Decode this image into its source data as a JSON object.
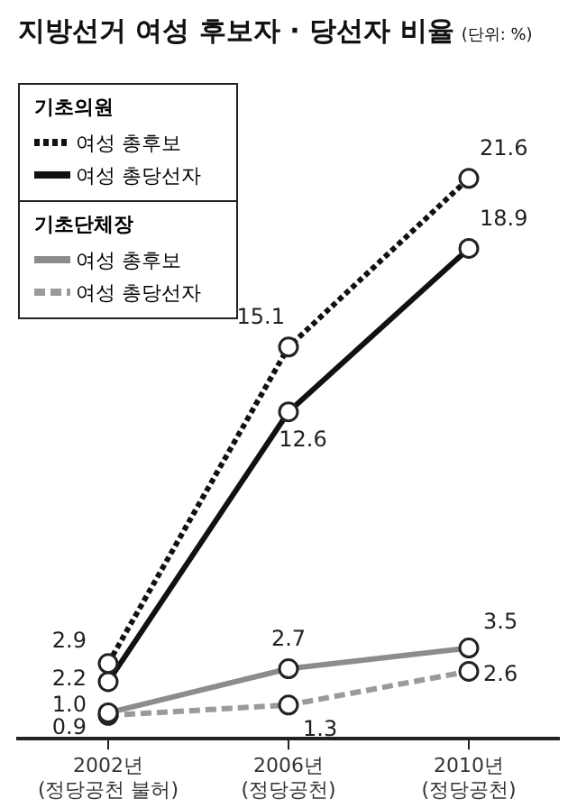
{
  "chart_data": {
    "type": "line",
    "title": "지방선거 여성 후보자 · 당선자 비율",
    "subtitle": "(단위: %)",
    "categories": [
      "2002년\n(정당공천 불허)",
      "2006년\n(정당공천)",
      "2010년\n(정당공천)"
    ],
    "legend_title": [
      "기초의원",
      "기초단체장"
    ],
    "series": [
      {
        "name": "여성 총후보",
        "color": "#111111",
        "values": [
          2.9,
          15.1,
          21.6
        ],
        "value_labels": [
          "2.9",
          "15.1",
          "21.6"
        ],
        "line_style": "dotted"
      },
      {
        "name": "여성 총당선자",
        "color": "#111111",
        "values": [
          2.2,
          12.6,
          18.9
        ],
        "value_labels": [
          "2.2",
          "12.6",
          "18.9"
        ],
        "line_style": "solid"
      },
      {
        "name": "여성 총후보",
        "color": "#8c8c8c",
        "values": [
          1.0,
          2.7,
          3.5
        ],
        "value_labels": [
          "1.0",
          "2.7",
          "3.5"
        ],
        "line_style": "solid"
      },
      {
        "name": "여성 총당선자",
        "color": "#9a9a9a",
        "values": [
          0.9,
          1.3,
          2.6
        ],
        "value_labels": [
          "0.9",
          "1.3",
          "2.6"
        ],
        "line_style": "dashed"
      }
    ],
    "tick_labels": "x",
    "marker": "circle",
    "legend": "top left",
    "grid": false
  }
}
